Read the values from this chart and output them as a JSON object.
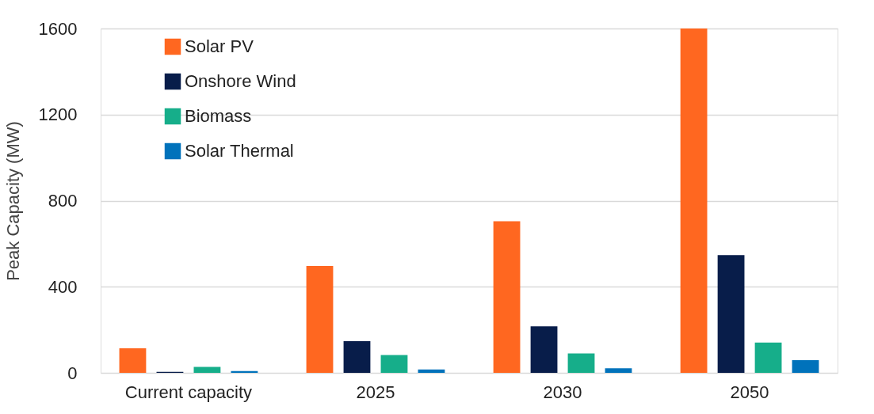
{
  "chart_data": {
    "type": "bar",
    "ylabel": "Peak Capacity (MW)",
    "categories": [
      "Current capacity",
      "2025",
      "2030",
      "2050"
    ],
    "series": [
      {
        "name": "Solar PV",
        "color": "#ff6720",
        "values": [
          114,
          497,
          704,
          1600
        ]
      },
      {
        "name": "Onshore Wind",
        "color": "#081d4a",
        "values": [
          5,
          147,
          216,
          547
        ]
      },
      {
        "name": "Biomass",
        "color": "#16ae8a",
        "values": [
          28,
          83,
          90,
          141
        ]
      },
      {
        "name": "Solar Thermal",
        "color": "#0072bb",
        "values": [
          8,
          16,
          21,
          59
        ]
      }
    ],
    "ylim": [
      0,
      1600
    ],
    "yticks": [
      0,
      400,
      800,
      1200,
      1600
    ],
    "grid": "y",
    "legend": "top left"
  }
}
